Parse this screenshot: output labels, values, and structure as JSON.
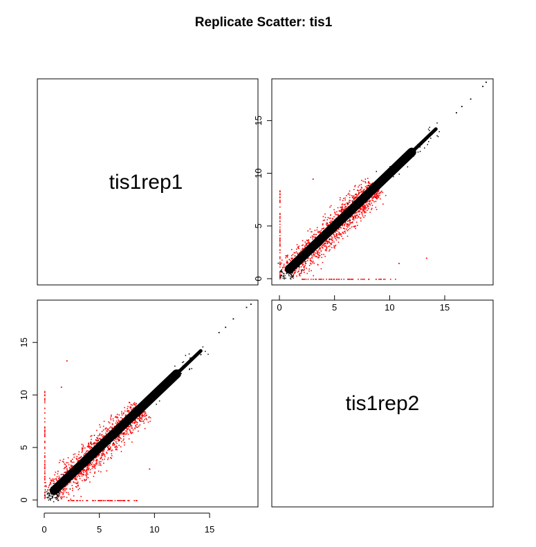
{
  "chart_data": {
    "type": "scatter",
    "layout": "pairs",
    "title": "Replicate Scatter: tis1",
    "variables": [
      "tis1rep1",
      "tis1rep2"
    ],
    "axis_range": [
      0,
      19
    ],
    "ticks": [
      0,
      5,
      10,
      15
    ],
    "tick_labels": [
      "0",
      "5",
      "10",
      "15"
    ],
    "colors": {
      "concordant": "#000000",
      "discordant": "#ff0000"
    },
    "panels": [
      {
        "position": "upper-right",
        "x": "tis1rep2",
        "y": "tis1rep1",
        "trend": [
          [
            0.1,
            0.1
          ],
          [
            18.7,
            18.7
          ]
        ],
        "outliers": [
          [
            13.3,
            2.0
          ],
          [
            10.8,
            1.5
          ],
          [
            3.0,
            9.5
          ]
        ],
        "zero_column_y_max": 8.5,
        "zero_row_x_max": 10.5,
        "extremes": [
          [
            18.7,
            18.7
          ],
          [
            18.4,
            18.3
          ],
          [
            17.3,
            17.1
          ],
          [
            16.5,
            16.4
          ],
          [
            16.0,
            15.8
          ]
        ]
      },
      {
        "position": "lower-left",
        "x": "tis1rep1",
        "y": "tis1rep2",
        "trend": [
          [
            0.1,
            0.1
          ],
          [
            18.7,
            18.7
          ]
        ],
        "outliers": [
          [
            2.0,
            13.3
          ],
          [
            1.5,
            10.8
          ],
          [
            9.5,
            3.0
          ]
        ],
        "zero_column_y_max": 10.5,
        "zero_row_x_max": 8.5,
        "extremes": [
          [
            18.7,
            18.7
          ],
          [
            18.3,
            18.4
          ],
          [
            17.1,
            17.3
          ],
          [
            16.4,
            16.5
          ],
          [
            15.8,
            16.0
          ]
        ]
      }
    ]
  }
}
